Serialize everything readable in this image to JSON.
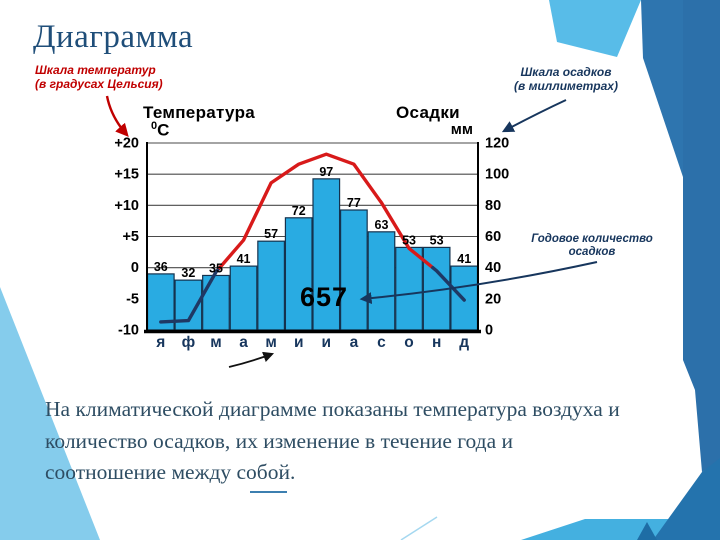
{
  "slide": {
    "title": "Диаграмма",
    "body_lines": [
      "На климатической диаграмме показаны температура воздуха и",
      "количество осадков, их изменение в течение года и",
      "соотношение между собой."
    ]
  },
  "annotations": {
    "temp_scale_line1": "Шкала температур",
    "temp_scale_line2": "(в градусах Цельсия)",
    "precip_scale_line1": "Шкала осадков",
    "precip_scale_line2": "(в миллиметрах)",
    "annual_line1": "Годовое количество",
    "annual_line2": "осадков"
  },
  "chart_data": {
    "type": "bar",
    "subtype": "climatogram: precipitation bars + temperature line",
    "title_left": "Температура",
    "unit_left_sup": "0",
    "unit_left_main": "C",
    "title_right": "Осадки",
    "unit_right": "мм",
    "categories": [
      "я",
      "ф",
      "м",
      "а",
      "м",
      "и",
      "и",
      "а",
      "с",
      "о",
      "н",
      "д"
    ],
    "series": [
      {
        "name": "Осадки, мм",
        "type": "bar",
        "values": [
          36,
          32,
          35,
          41,
          57,
          72,
          97,
          77,
          63,
          53,
          53,
          41
        ],
        "color": "#29abe2"
      },
      {
        "name": "Температура, °C",
        "type": "line",
        "values": [
          -8.7,
          -8.5,
          -0.7,
          4.4,
          13.6,
          16.6,
          18.2,
          16.6,
          10.4,
          3.1,
          -0.5,
          -5.2
        ],
        "color_above_zero": "#d81a1a",
        "color_below_zero": "#1f3864"
      }
    ],
    "annual_total": "657",
    "left_axis": {
      "ticks": [
        "+20",
        "+15",
        "+10",
        "+5",
        "0",
        "-5",
        "-10"
      ],
      "min": -10,
      "max": 20
    },
    "right_axis": {
      "ticks": [
        "120",
        "100",
        "80",
        "60",
        "40",
        "20",
        "0"
      ],
      "min": 0,
      "max": 120
    },
    "grid": true,
    "legend": "none"
  },
  "colors": {
    "bar_fill": "#29abe2",
    "bar_outline": "#14324e",
    "temp_line_warm": "#d81a1a",
    "temp_line_cold": "#1f3864",
    "month_label": "#17365d",
    "annotation_red": "#c00000",
    "annotation_navy": "#17365d",
    "title_text": "#1f4e79",
    "body_text": "#2e4d63",
    "theme_light_blue": "#58bce8",
    "theme_mid_blue": "#2e75af",
    "theme_cyan": "#44b0e0"
  }
}
